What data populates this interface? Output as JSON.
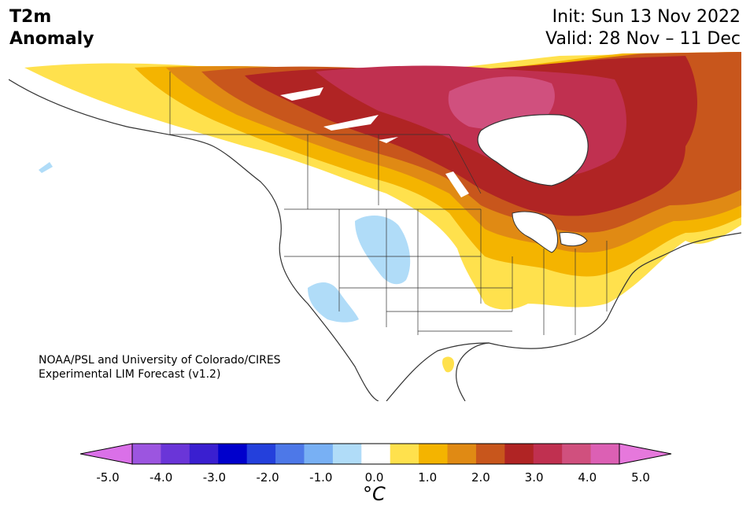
{
  "header": {
    "title_line1": "T2m",
    "title_line2": "Anomaly",
    "init": "Init: Sun 13 Nov 2022",
    "valid": "Valid: 28 Nov – 11 Dec"
  },
  "credit": {
    "line1": "NOAA/PSL and University of Colorado/CIRES",
    "line2": "Experimental LIM Forecast (v1.2)"
  },
  "colorbar": {
    "unit": "°C",
    "ticks": [
      "-5.0",
      "-4.0",
      "-3.0",
      "-2.0",
      "-1.0",
      "0.0",
      "1.0",
      "2.0",
      "3.0",
      "4.0",
      "5.0"
    ],
    "colors": [
      "#da70e8",
      "#9c55e0",
      "#6a35d8",
      "#3a1fd0",
      "#0000cc",
      "#2440dc",
      "#4d78e8",
      "#78b0f4",
      "#b0dcf8",
      "#ffffff",
      "#ffe14d",
      "#f4b400",
      "#e08a14",
      "#c8561c",
      "#b02424",
      "#c03050",
      "#d0507e",
      "#dc60b4",
      "#e678dc"
    ]
  }
}
